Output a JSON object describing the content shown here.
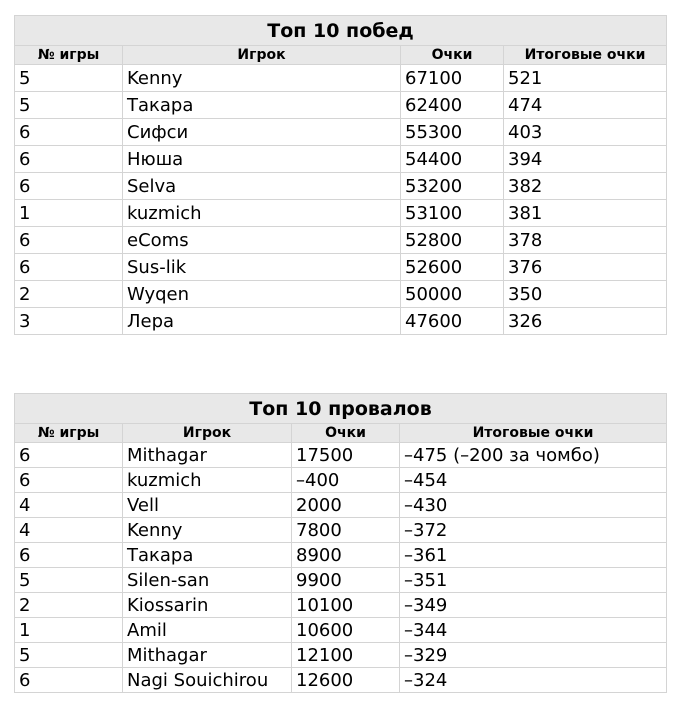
{
  "wins": {
    "title": "Топ 10 побед",
    "headers": [
      "№ игры",
      "Игрок",
      "Очки",
      "Итоговые очки"
    ],
    "rows": [
      [
        "5",
        "Kenny",
        "67100",
        "521"
      ],
      [
        "5",
        "Такара",
        "62400",
        "474"
      ],
      [
        "6",
        "Сифси",
        "55300",
        "403"
      ],
      [
        "6",
        "Нюша",
        "54400",
        "394"
      ],
      [
        "6",
        "Selva",
        "53200",
        "382"
      ],
      [
        "1",
        "kuzmich",
        "53100",
        "381"
      ],
      [
        "6",
        "eComs",
        "52800",
        "378"
      ],
      [
        "6",
        "Sus-lik",
        "52600",
        "376"
      ],
      [
        "2",
        "Wyqen",
        "50000",
        "350"
      ],
      [
        "3",
        "Лера",
        "47600",
        "326"
      ]
    ]
  },
  "fails": {
    "title": "Топ 10 провалов",
    "headers": [
      "№ игры",
      "Игрок",
      "Очки",
      "Итоговые очки"
    ],
    "rows": [
      [
        "6",
        "Mithagar",
        "17500",
        "–475 (–200 за чомбо)"
      ],
      [
        "6",
        "kuzmich",
        "–400",
        "–454"
      ],
      [
        "4",
        "Vell",
        "2000",
        "–430"
      ],
      [
        "4",
        "Kenny",
        "7800",
        "–372"
      ],
      [
        "6",
        "Такара",
        "8900",
        "–361"
      ],
      [
        "5",
        "Silen-san",
        "9900",
        "–351"
      ],
      [
        "2",
        "Kiossarin",
        "10100",
        "–349"
      ],
      [
        "1",
        "Amil",
        "10600",
        "–344"
      ],
      [
        "5",
        "Mithagar",
        "12100",
        "–329"
      ],
      [
        "6",
        "Nagi Souichirou",
        "12600",
        "–324"
      ]
    ]
  }
}
